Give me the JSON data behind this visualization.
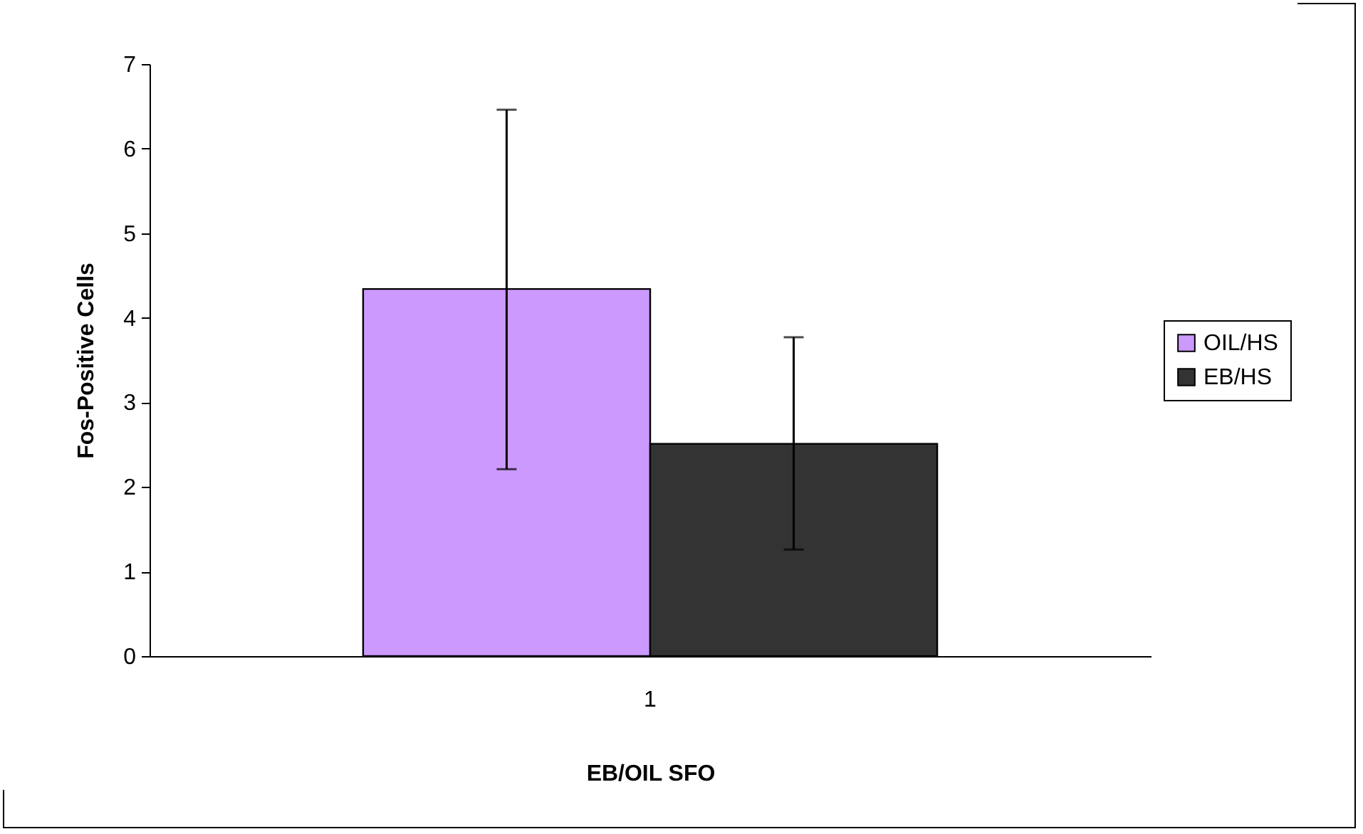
{
  "chart_data": {
    "type": "bar",
    "xlabel": "EB/OIL SFO",
    "ylabel": "Fos-Positive Cells",
    "categories": [
      "1"
    ],
    "series": [
      {
        "name": "OIL/HS",
        "color": "#cc99ff",
        "values": [
          4.34
        ],
        "errors": [
          [
            2.21,
            6.46
          ]
        ]
      },
      {
        "name": "EB/HS",
        "color": "#333333",
        "values": [
          2.51
        ],
        "errors": [
          [
            1.26,
            3.77
          ]
        ]
      }
    ],
    "ylim": [
      0,
      7
    ],
    "yticks": [
      0,
      1,
      2,
      3,
      4,
      5,
      6,
      7
    ],
    "grid": false,
    "legend": "right"
  }
}
